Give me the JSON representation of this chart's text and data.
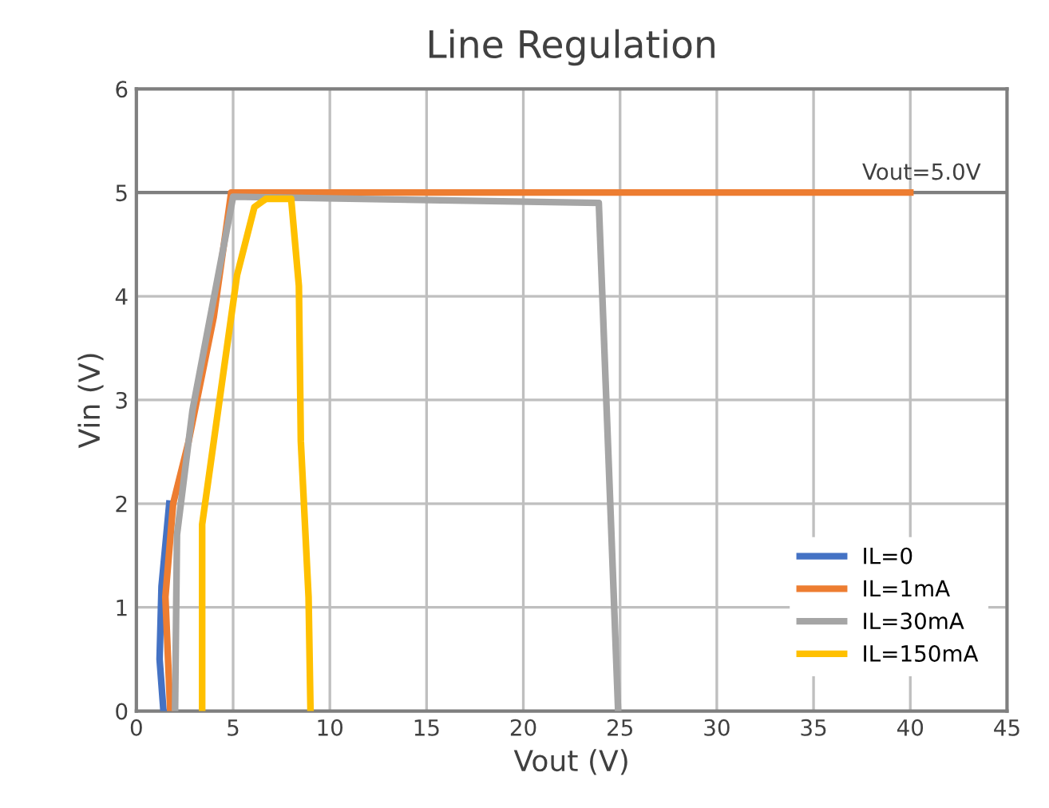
{
  "chart_data": {
    "type": "line",
    "title": "Line Regulation",
    "xlabel": "Vout (V)",
    "ylabel": "Vin (V)",
    "xlim": [
      0,
      45
    ],
    "xticks": [
      0,
      5,
      10,
      15,
      20,
      25,
      30,
      35,
      40,
      45
    ],
    "ylim": [
      0,
      6
    ],
    "yticks": [
      0,
      1,
      2,
      3,
      4,
      5,
      6
    ],
    "grid": true,
    "legend": "bottom right",
    "marker": "none",
    "line_style": "solid",
    "ref_lines": [
      {
        "axis": "y",
        "value": 5,
        "label": "Vout=5.0V",
        "color": "#7f7f7f",
        "line_style": "solid"
      }
    ],
    "series": [
      {
        "name": "IL=0",
        "color": "#4472c4",
        "x": [
          1.4,
          1.2,
          1.3,
          1.7
        ],
        "values": [
          0,
          0.5,
          1.2,
          2.0
        ]
      },
      {
        "name": "IL=1mA",
        "color": "#ed7d31",
        "x": [
          1.75,
          1.5,
          1.9,
          2.7,
          4.0,
          4.9,
          40
        ],
        "values": [
          0,
          1.1,
          2.0,
          2.6,
          3.8,
          5.0,
          5.0
        ]
      },
      {
        "name": "IL=30mA",
        "color": "#a5a5a5",
        "x": [
          2.0,
          2.1,
          2.9,
          5.0,
          23.9,
          24.9
        ],
        "values": [
          0,
          1.7,
          2.9,
          4.96,
          4.9,
          0
        ]
      },
      {
        "name": "IL=150mA",
        "color": "#ffc000",
        "x": [
          3.4,
          3.4,
          4.3,
          5.2,
          6.1,
          6.7,
          8.0,
          8.4,
          8.5,
          8.9,
          9.0
        ],
        "values": [
          0,
          1.8,
          3.0,
          4.2,
          4.86,
          4.94,
          4.94,
          4.1,
          2.6,
          1.1,
          0
        ]
      }
    ]
  }
}
